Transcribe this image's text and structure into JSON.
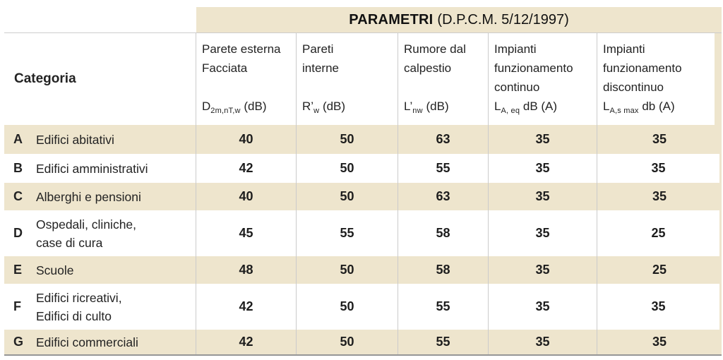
{
  "title": {
    "main": "PARAMETRI",
    "suffix": "(D.P.C.M. 5/12/1997)"
  },
  "columns": [
    {
      "label": "Categoria"
    },
    {
      "desc": "Parete esterna\nFacciata",
      "sym_base": "D",
      "sym_sub": "2m,nT,w",
      "sym_unit": " (dB)"
    },
    {
      "desc": "Pareti\ninterne",
      "sym_base": "R’",
      "sym_sub": "w",
      "sym_unit": " (dB)"
    },
    {
      "desc": "Rumore dal\ncalpestio",
      "sym_base": "L’",
      "sym_sub": "nw",
      "sym_unit": " (dB)"
    },
    {
      "desc": "Impianti\nfunzionamento\ncontinuo",
      "sym_base": "L",
      "sym_sub": "A, eq",
      "sym_unit": " dB (A)"
    },
    {
      "desc": "Impianti\nfunzionamento\ndiscontinuo",
      "sym_base": "L",
      "sym_sub": "A,s max",
      "sym_unit": " db (A)"
    }
  ],
  "rows": [
    {
      "letter": "A",
      "name": "Edifici abitativi",
      "values": [
        "40",
        "50",
        "63",
        "35",
        "35"
      ]
    },
    {
      "letter": "B",
      "name": "Edifici amministrativi",
      "values": [
        "42",
        "50",
        "55",
        "35",
        "35"
      ]
    },
    {
      "letter": "C",
      "name": "Alberghi e pensioni",
      "values": [
        "40",
        "50",
        "63",
        "35",
        "35"
      ]
    },
    {
      "letter": "D",
      "name": "Ospedali, cliniche,\ncase di cura",
      "values": [
        "45",
        "55",
        "58",
        "35",
        "25"
      ]
    },
    {
      "letter": "E",
      "name": "Scuole",
      "values": [
        "48",
        "50",
        "58",
        "35",
        "25"
      ]
    },
    {
      "letter": "F",
      "name": "Edifici ricreativi,\nEdifici di culto",
      "values": [
        "42",
        "50",
        "55",
        "35",
        "35"
      ]
    },
    {
      "letter": "G",
      "name": "Edifici commerciali",
      "values": [
        "42",
        "50",
        "55",
        "35",
        "35"
      ]
    }
  ],
  "colors": {
    "beige": "#EEE5CD",
    "border_light": "#CBCBCB",
    "border_bottom": "#969696",
    "text": "#232323"
  }
}
